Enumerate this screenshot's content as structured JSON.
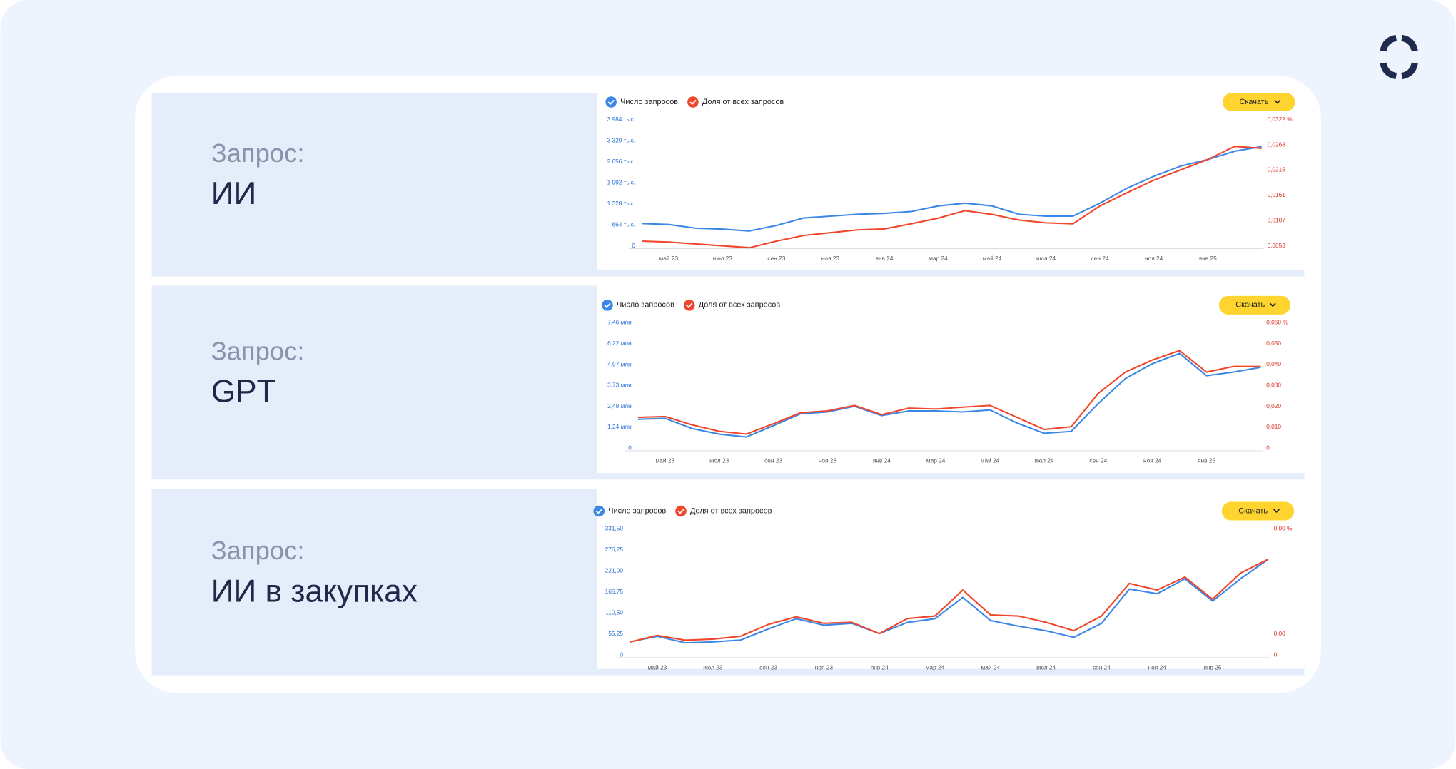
{
  "chart_data": [
    {
      "type": "line",
      "query_label": "Запрос:",
      "query": "ИИ",
      "button": "Скачать",
      "categories": [
        null,
        "май 23",
        null,
        "июл 23",
        null,
        "сен 23",
        null,
        "ноя 23",
        null,
        "янв 24",
        null,
        "мар 24",
        null,
        "май 24",
        null,
        "июл 24",
        null,
        "сен 24",
        null,
        "ноя 24",
        null,
        "янв 25",
        null,
        null
      ],
      "series": [
        {
          "name": "Число запросов",
          "color": "#3b87e6",
          "values": [
            703,
            674,
            557,
            527,
            469,
            644,
            879,
            937,
            996,
            1025,
            1084,
            1259,
            1347,
            1259,
            996,
            937,
            937,
            1347,
            1816,
            2197,
            2519,
            2724,
            2988,
            3134
          ]
        },
        {
          "name": "Доля от всех запросов",
          "color": "#f1462c",
          "axis": "y2",
          "values": [
            0.0063,
            0.0061,
            0.0057,
            0.0053,
            0.0049,
            0.0063,
            0.0075,
            0.0081,
            0.0087,
            0.0089,
            0.01,
            0.0112,
            0.0128,
            0.012,
            0.0108,
            0.0102,
            0.01,
            0.0138,
            0.0166,
            0.0193,
            0.0215,
            0.0237,
            0.0265,
            0.0261
          ]
        }
      ],
      "ylim": [
        0,
        3984
      ],
      "yticks": [
        0,
        {
          "value": 664,
          "label": "664 тыс."
        },
        {
          "value": 1328,
          "label": "1 328 тыс."
        },
        {
          "value": 1992,
          "label": "1 992 тыс."
        },
        {
          "value": 2656,
          "label": "2 656 тыс."
        },
        {
          "value": 3320,
          "label": "3 320 тыс."
        },
        {
          "value": 3984,
          "label": "3 984 тыс."
        }
      ],
      "y2lim": [
        0.0053,
        0.0322
      ],
      "y2ticks": [
        {
          "value": 0.0053,
          "label": "0,0053"
        },
        {
          "value": 0.0107,
          "label": "0,0107"
        },
        {
          "value": 0.0161,
          "label": "0,0161"
        },
        {
          "value": 0.0215,
          "label": "0,0215"
        },
        {
          "value": 0.0268,
          "label": "0,0268"
        },
        {
          "value": 0.0322,
          "label": "0,0322 %"
        }
      ]
    },
    {
      "type": "line",
      "query_label": "Запрос:",
      "query": "GPT",
      "button": "Скачать",
      "categories": [
        null,
        "май 23",
        null,
        "июл 23",
        null,
        "сен 23",
        null,
        "ноя 23",
        null,
        "янв 24",
        null,
        "мар 24",
        null,
        "май 24",
        null,
        "июл 24",
        null,
        "сен 24",
        null,
        "ноя 24",
        null,
        "янв 25",
        null,
        null
      ],
      "series": [
        {
          "name": "Число запросов",
          "color": "#3b87e6",
          "values": [
            1.71,
            1.77,
            1.16,
            0.83,
            0.66,
            1.33,
            2.04,
            2.15,
            2.49,
            1.93,
            2.21,
            2.21,
            2.15,
            2.27,
            1.49,
            0.88,
            0.99,
            2.65,
            4.14,
            5.03,
            5.64,
            4.31,
            4.53,
            4.81
          ]
        },
        {
          "name": "Доля от всех запросов",
          "color": "#f1462c",
          "axis": "y2",
          "values": [
            0.0147,
            0.0151,
            0.0111,
            0.008,
            0.0067,
            0.0116,
            0.0169,
            0.0178,
            0.0204,
            0.016,
            0.0191,
            0.0187,
            0.0196,
            0.0204,
            0.0147,
            0.0089,
            0.0102,
            0.0262,
            0.0364,
            0.0422,
            0.0467,
            0.0364,
            0.0391,
            0.0391
          ]
        }
      ],
      "ylim": [
        0,
        7.46
      ],
      "yticks": [
        0,
        {
          "value": 1.24,
          "label": "1,24 млн"
        },
        {
          "value": 2.48,
          "label": "2,48 млн"
        },
        {
          "value": 3.73,
          "label": "3,73 млн"
        },
        {
          "value": 4.97,
          "label": "4,97 млн"
        },
        {
          "value": 6.22,
          "label": "6,22 млн"
        },
        {
          "value": 7.46,
          "label": "7,46 млн"
        }
      ],
      "y2lim": [
        0,
        0.06
      ],
      "y2ticks": [
        0,
        {
          "value": 0.01,
          "label": "0,010"
        },
        {
          "value": 0.02,
          "label": "0,020"
        },
        {
          "value": 0.03,
          "label": "0,030"
        },
        {
          "value": 0.04,
          "label": "0,040"
        },
        {
          "value": 0.05,
          "label": "0,050"
        },
        {
          "value": 0.06,
          "label": "0,060 %"
        }
      ]
    },
    {
      "type": "line",
      "query_label": "Запрос:",
      "query": "ИИ в закупках",
      "button": "Скачать",
      "categories": [
        null,
        "май 23",
        null,
        "июл 23",
        null,
        "сен 23",
        null,
        "ноя 23",
        null,
        "янв 24",
        null,
        "мар 24",
        null,
        "май 24",
        null,
        "июл 24",
        null,
        "сен 24",
        null,
        "ноя 24",
        null,
        "янв 25",
        null,
        null
      ],
      "series": [
        {
          "name": "Число запросов",
          "color": "#3b87e6",
          "values": [
            34.1,
            48.8,
            31.7,
            34.1,
            39.0,
            68.3,
            95.1,
            78.0,
            82.9,
            56.1,
            85.3,
            95.1,
            151.1,
            90.2,
            75.6,
            63.4,
            46.3,
            82.9,
            173.1,
            160.9,
            199.9,
            141.4,
            199.9,
            251.1
          ]
        },
        {
          "name": "Доля от всех запросов",
          "color": "#f1462c",
          "axis": "y2",
          "values": [
            0.00049,
            0.00074,
            0.00056,
            0.0006,
            0.00071,
            0.00116,
            0.00145,
            0.0012,
            0.00124,
            0.00081,
            0.00138,
            0.00148,
            0.00247,
            0.00152,
            0.00148,
            0.00124,
            0.00092,
            0.00148,
            0.00272,
            0.00247,
            0.00296,
            0.00212,
            0.00311,
            0.00364
          ]
        }
      ],
      "ylim": [
        0,
        331.5
      ],
      "yticks": [
        0,
        {
          "value": 55.25,
          "label": "55,25"
        },
        {
          "value": 110.5,
          "label": "110,50"
        },
        {
          "value": 165.75,
          "label": "165,75"
        },
        {
          "value": 221,
          "label": "221,00"
        },
        {
          "value": 276.25,
          "label": "276,25"
        },
        {
          "value": 331.5,
          "label": "331,50"
        }
      ],
      "y2lim": [
        0,
        0.0048
      ],
      "y2ticks": [
        0,
        {
          "value": 0.0008,
          "label": "0,00"
        },
        {
          "value": 0.0048,
          "label": "0,00 %"
        }
      ]
    }
  ]
}
